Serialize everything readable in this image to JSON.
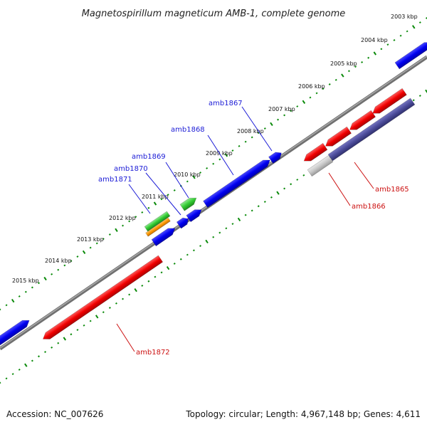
{
  "title": "Magnetospirillum magneticum AMB-1, complete genome",
  "footer": {
    "accession": "Accession: NC_007626",
    "topology": "Topology: circular; Length: 4,967,148 bp; Genes: 4,611"
  },
  "scale": {
    "ticks": [
      "2003 kbp",
      "2004 kbp",
      "2005 kbp",
      "2006 kbp",
      "2007 kbp",
      "2008 kbp",
      "2009 kbp",
      "2010 kbp",
      "2011 kbp",
      "2012 kbp",
      "2013 kbp",
      "2014 kbp",
      "2015 kbp"
    ]
  },
  "genes": [
    {
      "label": "amb1865",
      "color": "#cc1111"
    },
    {
      "label": "amb1866",
      "color": "#cc1111"
    },
    {
      "label": "amb1867",
      "color": "#1b1bd6"
    },
    {
      "label": "amb1868",
      "color": "#1b1bd6"
    },
    {
      "label": "amb1869",
      "color": "#1b1bd6"
    },
    {
      "label": "amb1870",
      "color": "#1b1bd6"
    },
    {
      "label": "amb1871",
      "color": "#1b1bd6"
    },
    {
      "label": "amb1872",
      "color": "#cc1111"
    }
  ],
  "colors": {
    "backbone": "#808080",
    "scale_ticks": "#0a8a0a",
    "forward_gene": "#0000ff",
    "reverse_gene": "#ff0000",
    "rna_gene": "#33cc33",
    "pseudo_gene": "#ff9900",
    "region": "#4c4c9a",
    "region_light": "#c8c8c8"
  }
}
